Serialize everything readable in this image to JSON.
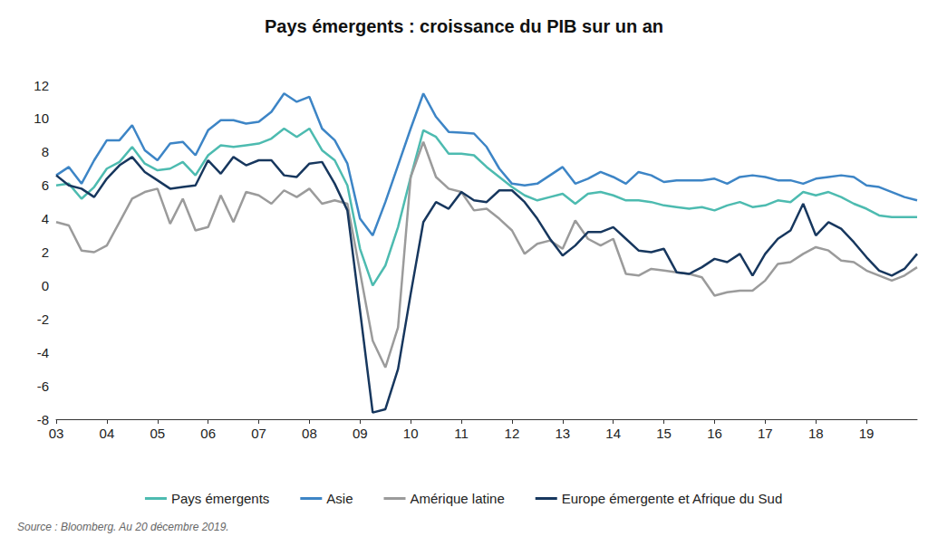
{
  "chart_data": {
    "type": "line",
    "title": "Pays émergents : croissance du PIB sur un an",
    "source": "Source : Bloomberg. Au 20 décembre 2019.",
    "categories": [
      "03",
      null,
      null,
      null,
      "04",
      null,
      null,
      null,
      "05",
      null,
      null,
      null,
      "06",
      null,
      null,
      null,
      "07",
      null,
      null,
      null,
      "08",
      null,
      null,
      null,
      "09",
      null,
      null,
      null,
      "10",
      null,
      null,
      null,
      "11",
      null,
      null,
      null,
      "12",
      null,
      null,
      null,
      "13",
      null,
      null,
      null,
      "14",
      null,
      null,
      null,
      "15",
      null,
      null,
      null,
      "16",
      null,
      null,
      null,
      "17",
      null,
      null,
      null,
      "18",
      null,
      null,
      null,
      "19",
      null,
      null,
      null,
      null
    ],
    "series": [
      {
        "name": "Pays émergents",
        "color": "#4dbbb0",
        "values": [
          6.0,
          6.1,
          5.2,
          5.9,
          7.0,
          7.4,
          8.3,
          7.3,
          6.9,
          7.0,
          7.4,
          6.6,
          7.8,
          8.4,
          8.3,
          8.4,
          8.5,
          8.8,
          9.4,
          8.9,
          9.4,
          8.1,
          7.5,
          6.0,
          2.2,
          0.0,
          1.2,
          3.5,
          6.5,
          9.3,
          8.9,
          7.9,
          7.9,
          7.8,
          7.1,
          6.5,
          5.9,
          5.4,
          5.1,
          5.3,
          5.5,
          4.9,
          5.5,
          5.6,
          5.4,
          5.1,
          5.1,
          5.0,
          4.8,
          4.7,
          4.6,
          4.7,
          4.5,
          4.8,
          5.0,
          4.7,
          4.8,
          5.1,
          5.0,
          5.6,
          5.4,
          5.6,
          5.3,
          4.9,
          4.6,
          4.2,
          4.1,
          4.1,
          4.1
        ]
      },
      {
        "name": "Asie",
        "color": "#3d85c6",
        "values": [
          6.6,
          7.1,
          6.1,
          7.5,
          8.7,
          8.7,
          9.6,
          8.1,
          7.5,
          8.5,
          8.6,
          7.8,
          9.3,
          9.9,
          9.9,
          9.7,
          9.8,
          10.4,
          11.5,
          11.0,
          11.3,
          9.4,
          8.7,
          7.3,
          4.0,
          3.0,
          5.0,
          7.2,
          9.4,
          11.5,
          10.1,
          9.2,
          9.15,
          9.1,
          8.3,
          7.0,
          6.1,
          6.0,
          6.1,
          6.6,
          7.1,
          6.1,
          6.4,
          6.8,
          6.5,
          6.1,
          6.8,
          6.6,
          6.2,
          6.3,
          6.3,
          6.3,
          6.4,
          6.1,
          6.5,
          6.6,
          6.5,
          6.3,
          6.3,
          6.1,
          6.4,
          6.5,
          6.6,
          6.5,
          6.0,
          5.9,
          5.6,
          5.3,
          5.1
        ]
      },
      {
        "name": "Amérique latine",
        "color": "#9b9b9b",
        "values": [
          3.8,
          3.6,
          2.1,
          2.0,
          2.4,
          3.8,
          5.2,
          5.6,
          5.8,
          3.7,
          5.2,
          3.3,
          3.5,
          5.4,
          3.8,
          5.6,
          5.4,
          4.9,
          5.7,
          5.3,
          5.8,
          4.9,
          5.1,
          4.9,
          0.8,
          -3.3,
          -4.9,
          -2.5,
          6.5,
          8.6,
          6.5,
          5.8,
          5.6,
          4.5,
          4.6,
          4.0,
          3.3,
          1.9,
          2.5,
          2.7,
          2.2,
          3.9,
          2.8,
          2.4,
          2.8,
          0.7,
          0.6,
          1.0,
          0.9,
          0.8,
          0.7,
          0.5,
          -0.6,
          -0.4,
          -0.3,
          -0.3,
          0.3,
          1.3,
          1.4,
          1.9,
          2.3,
          2.1,
          1.5,
          1.4,
          0.9,
          0.6,
          0.3,
          0.6,
          1.1
        ]
      },
      {
        "name": "Europe émergente et Afrique du Sud",
        "color": "#17375e",
        "values": [
          6.6,
          6.0,
          5.8,
          5.3,
          6.4,
          7.2,
          7.7,
          6.8,
          6.3,
          5.8,
          5.9,
          6.0,
          7.5,
          6.7,
          7.7,
          7.2,
          7.5,
          7.5,
          6.6,
          6.5,
          7.3,
          7.4,
          6.1,
          4.5,
          -1.5,
          -7.6,
          -7.4,
          -5.0,
          -0.5,
          3.8,
          5.0,
          4.6,
          5.6,
          5.1,
          5.0,
          5.7,
          5.7,
          5.0,
          4.0,
          2.8,
          1.8,
          2.4,
          3.2,
          3.2,
          3.5,
          2.8,
          2.1,
          2.0,
          2.2,
          0.8,
          0.7,
          1.1,
          1.6,
          1.4,
          1.9,
          0.6,
          1.9,
          2.8,
          3.3,
          4.9,
          3.0,
          3.8,
          3.4,
          2.6,
          1.7,
          0.9,
          0.6,
          1.0,
          1.9
        ]
      }
    ],
    "ylim": [
      -8,
      12
    ],
    "yticks": [
      -8,
      -6,
      -4,
      -2,
      0,
      2,
      4,
      6,
      8,
      10,
      12
    ],
    "grid": false,
    "legend": "bottom",
    "marker": "none"
  }
}
